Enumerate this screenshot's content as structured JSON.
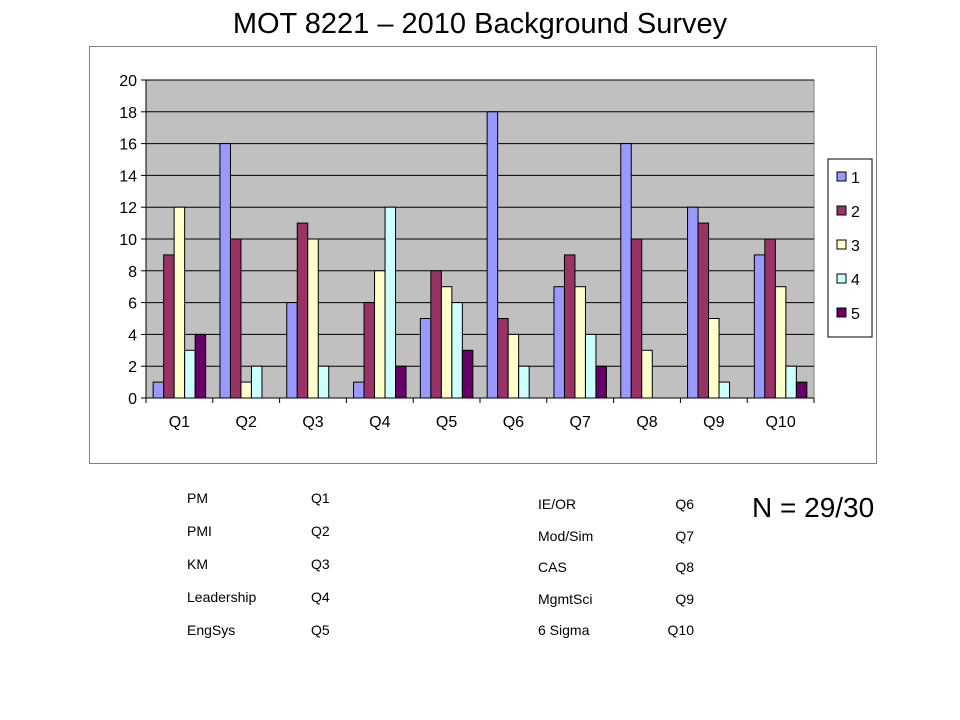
{
  "title": "MOT 8221 – 2010 Background Survey",
  "n_label": "N = 29/30",
  "key_left": [
    {
      "label": "PM",
      "code": "Q1"
    },
    {
      "label": "PMI",
      "code": "Q2"
    },
    {
      "label": "KM",
      "code": "Q3"
    },
    {
      "label": "Leadership",
      "code": "Q4"
    },
    {
      "label": "EngSys",
      "code": "Q5"
    }
  ],
  "key_right": [
    {
      "label": "IE/OR",
      "code": "Q6"
    },
    {
      "label": "Mod/Sim",
      "code": "Q7"
    },
    {
      "label": "CAS",
      "code": "Q8"
    },
    {
      "label": "MgmtSci",
      "code": "Q9"
    },
    {
      "label": "6 Sigma",
      "code": "Q10"
    }
  ],
  "chart_data": {
    "type": "bar",
    "categories": [
      "Q1",
      "Q2",
      "Q3",
      "Q4",
      "Q5",
      "Q6",
      "Q7",
      "Q8",
      "Q9",
      "Q10"
    ],
    "series": [
      {
        "name": "1",
        "color": "#9999ff",
        "values": [
          1,
          16,
          6,
          1,
          5,
          18,
          7,
          16,
          12,
          9
        ]
      },
      {
        "name": "2",
        "color": "#993366",
        "values": [
          9,
          10,
          11,
          6,
          8,
          5,
          9,
          10,
          11,
          10
        ]
      },
      {
        "name": "3",
        "color": "#ffffcc",
        "values": [
          12,
          1,
          10,
          8,
          7,
          4,
          7,
          3,
          5,
          7
        ]
      },
      {
        "name": "4",
        "color": "#ccffff",
        "values": [
          3,
          2,
          2,
          12,
          6,
          2,
          4,
          0,
          1,
          2
        ]
      },
      {
        "name": "5",
        "color": "#660066",
        "values": [
          4,
          0,
          0,
          2,
          3,
          0,
          2,
          0,
          0,
          1
        ]
      }
    ],
    "yticks": [
      "0",
      "2",
      "4",
      "6",
      "8",
      "10",
      "12",
      "14",
      "16",
      "18",
      "20"
    ],
    "ylim": [
      0,
      20
    ],
    "xlabel": "",
    "ylabel": "",
    "grid": true,
    "legend": "right",
    "plot_background": "#c0c0c0"
  }
}
